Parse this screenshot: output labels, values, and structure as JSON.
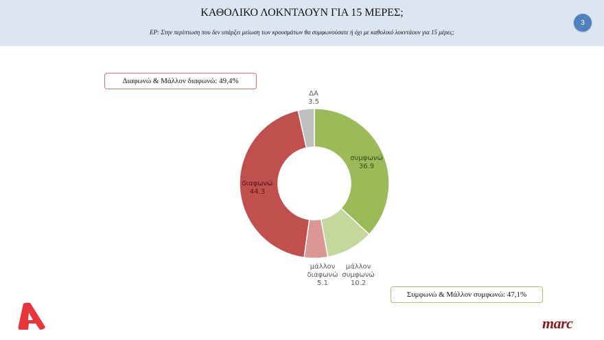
{
  "header": {
    "title": "ΚΑΘΟΛΙΚΟ ΛΟΚΝΤΑΟΥΝ ΓΙΑ 15 ΜΕΡΕΣ;",
    "question": "ΕΡ: Στην περίπτωση που δεν υπάρξει μείωση των κρουσμάτων θα συμφωνούσατε ή όχι  με καθολικό λοκντάουν για 15 μέρες;",
    "page_number": "3",
    "background_color": "#dce6f1"
  },
  "callouts": {
    "disagree_total": "Διαφωνώ & Μάλλον διαφωνώ: 49,4%",
    "agree_total": "Συμφωνώ & Μάλλον συμφωνώ: 47,1%"
  },
  "labels": {
    "agree": {
      "name": "συμφωνώ",
      "value": "36.9"
    },
    "rather_agree": {
      "name1": "μάλλον",
      "name2": "συμφωνώ",
      "value": "10.2"
    },
    "rather_disagree": {
      "name1": "μάλλον",
      "name2": "διαφωνώ",
      "value": "5.1"
    },
    "disagree": {
      "name": "διαφωνώ",
      "value": "44.3"
    },
    "dk": {
      "name": "ΔΑ",
      "value": "3.5"
    }
  },
  "logos": {
    "left": "alpha-logo",
    "right": "marc"
  },
  "chart_data": {
    "type": "pie",
    "subtype": "donut",
    "title": "ΚΑΘΟΛΙΚΟ ΛΟΚΝΤΑΟΥΝ ΓΙΑ 15 ΜΕΡΕΣ;",
    "categories": [
      "συμφωνώ",
      "μάλλον συμφωνώ",
      "μάλλον διαφωνώ",
      "διαφωνώ",
      "ΔΑ"
    ],
    "values": [
      36.9,
      10.2,
      5.1,
      44.3,
      3.5
    ],
    "colors": [
      "#9bbb59",
      "#c4d89b",
      "#dc9794",
      "#c0504d",
      "#bfbfbf"
    ],
    "start_angle": "top, clockwise",
    "annotations": [
      "Διαφωνώ & Μάλλον διαφωνώ: 49,4%",
      "Συμφωνώ & Μάλλον συμφωνώ: 47,1%"
    ],
    "legend": "none (data labels on slices)"
  }
}
